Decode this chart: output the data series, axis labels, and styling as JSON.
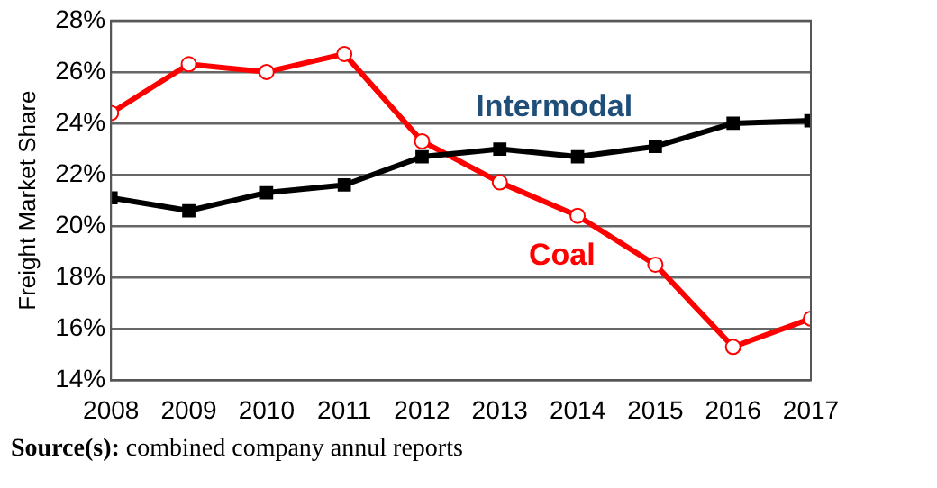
{
  "chart_data": {
    "type": "line",
    "ylabel": "Freight Market Share",
    "x": [
      2008,
      2009,
      2010,
      2011,
      2012,
      2013,
      2014,
      2015,
      2016,
      2017
    ],
    "xlim": [
      2008,
      2017
    ],
    "xticks": [
      2008,
      2009,
      2010,
      2011,
      2012,
      2013,
      2014,
      2015,
      2016,
      2017
    ],
    "ylim": [
      14,
      28
    ],
    "yticks": [
      {
        "value": 14,
        "label": "14%"
      },
      {
        "value": 16,
        "label": "16%"
      },
      {
        "value": 18,
        "label": "18%"
      },
      {
        "value": 20,
        "label": "20%"
      },
      {
        "value": 22,
        "label": "22%"
      },
      {
        "value": 24,
        "label": "24%"
      },
      {
        "value": 26,
        "label": "26%"
      },
      {
        "value": 28,
        "label": "28%"
      }
    ],
    "grid": "y",
    "legend": false,
    "series": [
      {
        "name": "Intermodal",
        "color": "#000000",
        "marker": "square",
        "values": [
          21.1,
          20.6,
          21.3,
          21.6,
          22.7,
          23.0,
          22.7,
          23.1,
          24.0,
          24.1
        ]
      },
      {
        "name": "Coal",
        "color": "#ff0000",
        "marker": "circle",
        "values": [
          24.4,
          26.3,
          26.0,
          26.7,
          23.3,
          21.7,
          20.4,
          18.5,
          15.3,
          16.4
        ]
      }
    ],
    "annotations": [
      "Source(s): combined company annul reports"
    ]
  }
}
